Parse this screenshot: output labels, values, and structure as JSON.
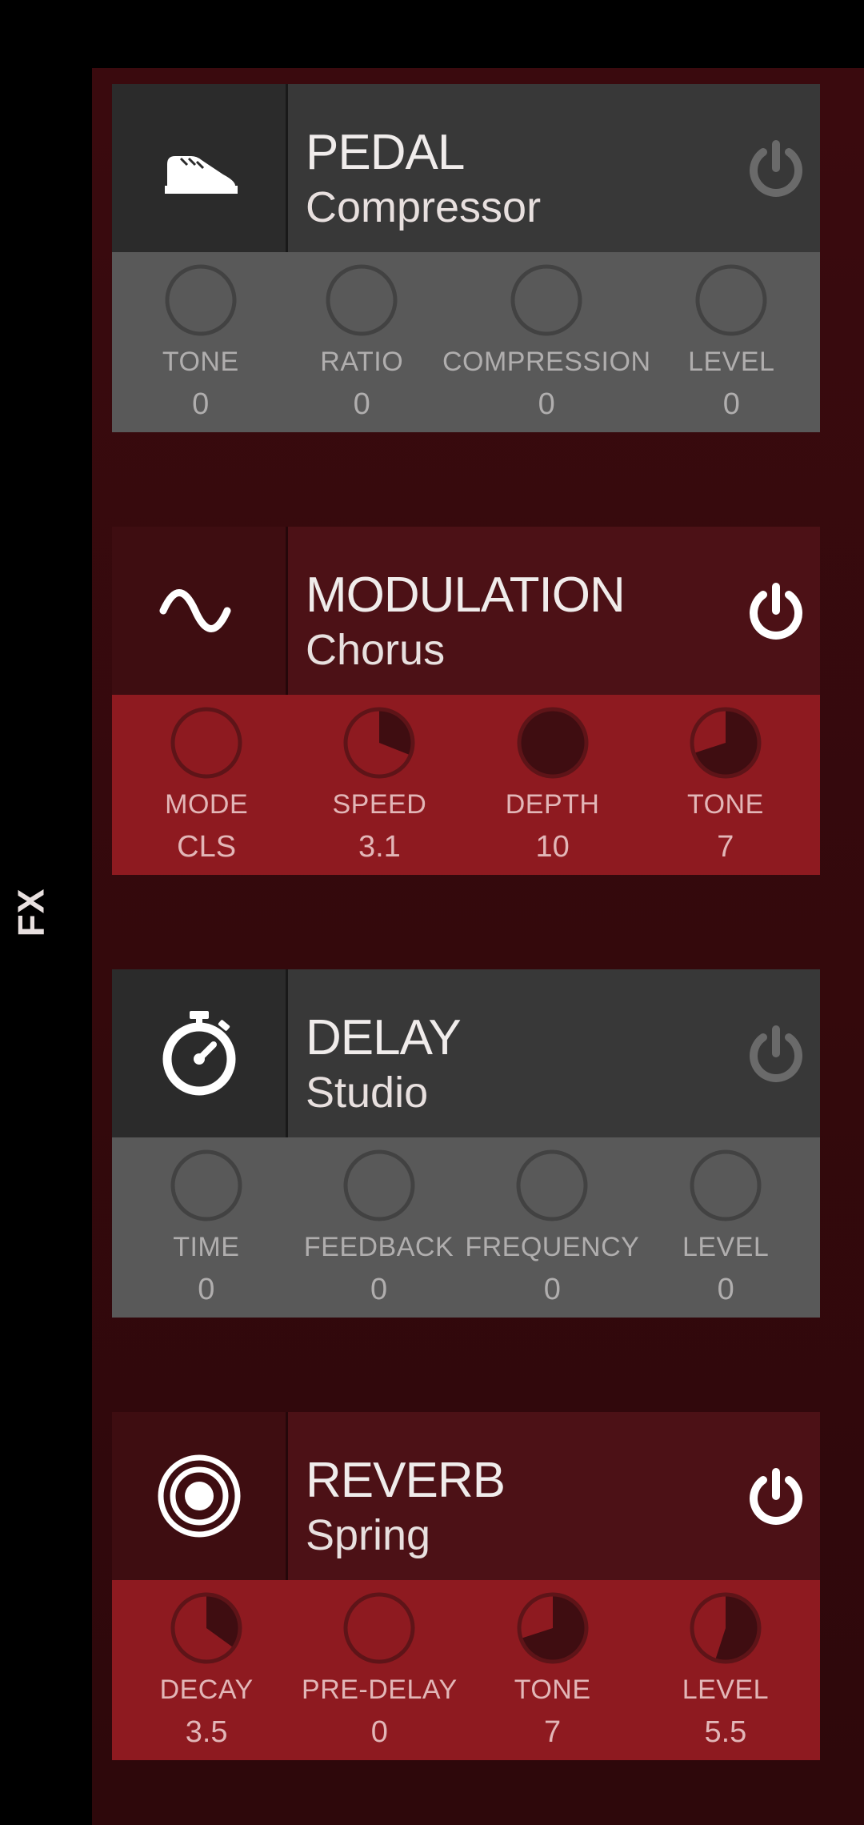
{
  "sidebar_label": "FX",
  "colors": {
    "bg": "#000000",
    "panel_gradient_top": "#3a0a0e",
    "panel_gradient_bottom": "#2e080b",
    "inactive_icon_bg": "#2b2b2b",
    "inactive_title_bg": "#383838",
    "inactive_knob_bg": "#595959",
    "inactive_text": "#b0aeae",
    "active_icon_bg": "#3e0d11",
    "active_title_bg": "#4c1116",
    "active_knob_bg": "#8e1a20",
    "active_text": "#e2b6b7",
    "title_text": "#f0eceb",
    "power_off": "#6a6a6a",
    "power_on": "#ffffff",
    "knob_ring_inactive": "#424242",
    "knob_ring_active": "#5e1418",
    "knob_fill_active": "#3f0d11"
  },
  "modules": [
    {
      "id": "pedal",
      "icon": "shoe-icon",
      "title": "PEDAL",
      "subtitle": "Compressor",
      "enabled": false,
      "knobs": [
        {
          "label": "TONE",
          "value": "0",
          "fill": 0
        },
        {
          "label": "RATIO",
          "value": "0",
          "fill": 0
        },
        {
          "label": "COMPRESSION",
          "value": "0",
          "fill": 0
        },
        {
          "label": "LEVEL",
          "value": "0",
          "fill": 0
        }
      ]
    },
    {
      "id": "modulation",
      "icon": "wave-icon",
      "title": "MODULATION",
      "subtitle": "Chorus",
      "enabled": true,
      "knobs": [
        {
          "label": "MODE",
          "value": "CLS",
          "fill": 0
        },
        {
          "label": "SPEED",
          "value": "3.1",
          "fill": 0.31
        },
        {
          "label": "DEPTH",
          "value": "10",
          "fill": 1.0
        },
        {
          "label": "TONE",
          "value": "7",
          "fill": 0.7
        }
      ]
    },
    {
      "id": "delay",
      "icon": "stopwatch-icon",
      "title": "DELAY",
      "subtitle": "Studio",
      "enabled": false,
      "knobs": [
        {
          "label": "TIME",
          "value": "0",
          "fill": 0
        },
        {
          "label": "FEEDBACK",
          "value": "0",
          "fill": 0
        },
        {
          "label": "FREQUENCY",
          "value": "0",
          "fill": 0
        },
        {
          "label": "LEVEL",
          "value": "0",
          "fill": 0
        }
      ]
    },
    {
      "id": "reverb",
      "icon": "rings-icon",
      "title": "REVERB",
      "subtitle": "Spring",
      "enabled": true,
      "knobs": [
        {
          "label": "DECAY",
          "value": "3.5",
          "fill": 0.35
        },
        {
          "label": "PRE-DELAY",
          "value": "0",
          "fill": 0
        },
        {
          "label": "TONE",
          "value": "7",
          "fill": 0.7
        },
        {
          "label": "LEVEL",
          "value": "5.5",
          "fill": 0.55
        }
      ]
    }
  ]
}
